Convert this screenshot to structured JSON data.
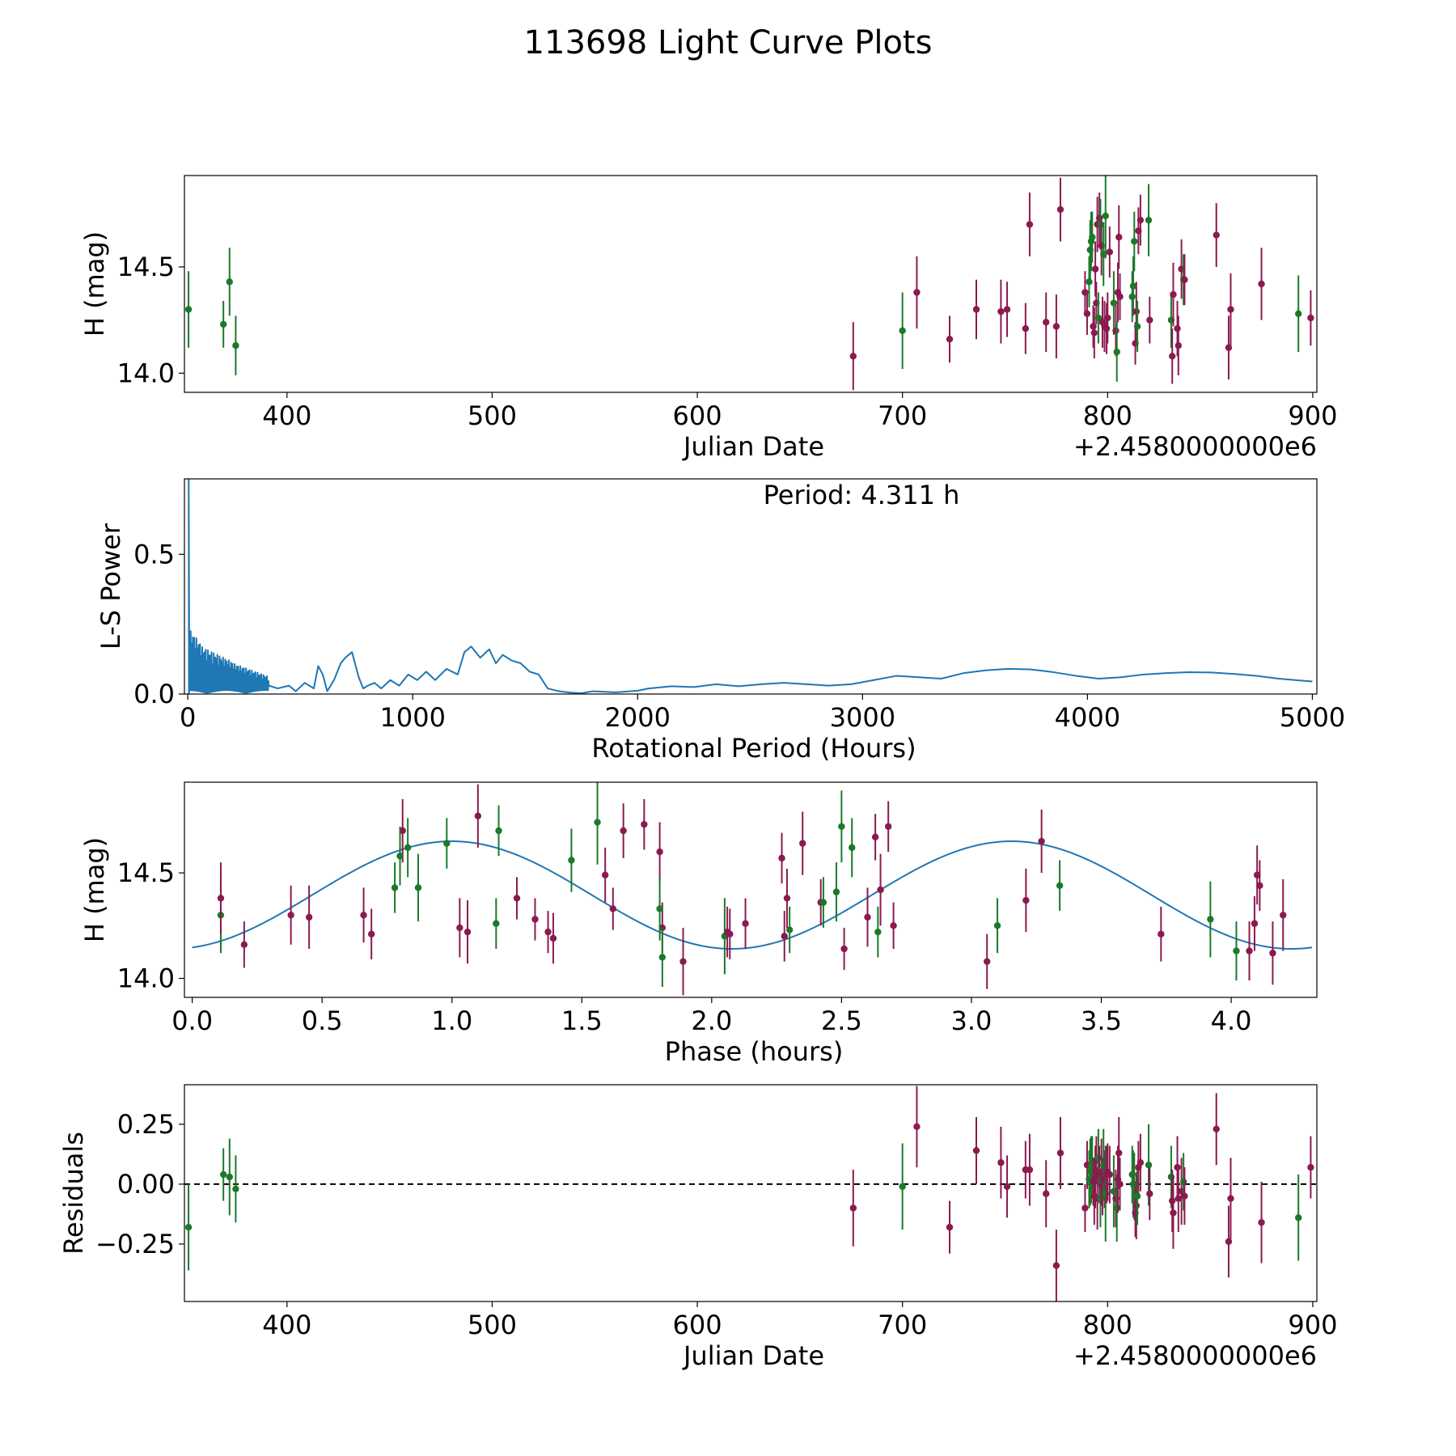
{
  "chart_data": {
    "title": "113698 Light Curve Plots",
    "colors": {
      "green": "#1a7a2a",
      "maroon": "#8b1a4f",
      "curve": "#1f77b4",
      "reference": "#000000"
    },
    "panels": [
      {
        "name": "light-curve",
        "type": "scatter",
        "xlabel": "Julian Date",
        "ylabel": "H (mag)",
        "offset_text": "+2.4580000000e6",
        "xlim": [
          350,
          902
        ],
        "ylim": [
          13.91,
          14.93
        ],
        "xticks": [
          400,
          500,
          600,
          700,
          800,
          900
        ],
        "xtick_labels": [
          "400",
          "500",
          "600",
          "700",
          "800",
          "900"
        ],
        "yticks": [
          14.0,
          14.5
        ],
        "ytick_labels": [
          "14.0",
          "14.5"
        ]
      },
      {
        "name": "periodogram",
        "type": "line",
        "xlabel": "Rotational Period (Hours)",
        "ylabel": "L-S Power",
        "annotation": "Period: 4.311 h",
        "xlim": [
          -15,
          5020
        ],
        "ylim": [
          0,
          0.77
        ],
        "xticks": [
          0,
          1000,
          2000,
          3000,
          4000,
          5000
        ],
        "xtick_labels": [
          "0",
          "1000",
          "2000",
          "3000",
          "4000",
          "5000"
        ],
        "yticks": [
          0.0,
          0.5
        ],
        "ytick_labels": [
          "0.0",
          "0.5"
        ],
        "noise_region": [
          5,
          360
        ],
        "x": [
          360,
          400,
          450,
          480,
          520,
          560,
          580,
          600,
          620,
          650,
          680,
          700,
          730,
          760,
          780,
          800,
          830,
          860,
          900,
          940,
          980,
          1020,
          1060,
          1100,
          1150,
          1200,
          1230,
          1260,
          1300,
          1340,
          1370,
          1400,
          1440,
          1480,
          1520,
          1560,
          1600,
          1650,
          1700,
          1750,
          1800,
          1900,
          2000,
          2050,
          2150,
          2250,
          2350,
          2450,
          2550,
          2650,
          2750,
          2850,
          2950,
          3050,
          3150,
          3250,
          3350,
          3450,
          3550,
          3650,
          3750,
          3850,
          3950,
          4050,
          4150,
          4250,
          4350,
          4450,
          4550,
          4650,
          4750,
          4850,
          4950,
          5000
        ],
        "y": [
          0.03,
          0.02,
          0.03,
          0.01,
          0.04,
          0.02,
          0.1,
          0.07,
          0.01,
          0.05,
          0.11,
          0.13,
          0.15,
          0.06,
          0.02,
          0.03,
          0.04,
          0.02,
          0.05,
          0.03,
          0.07,
          0.05,
          0.08,
          0.05,
          0.09,
          0.07,
          0.15,
          0.17,
          0.13,
          0.16,
          0.11,
          0.14,
          0.12,
          0.11,
          0.08,
          0.07,
          0.02,
          0.01,
          0.005,
          0.003,
          0.01,
          0.006,
          0.012,
          0.02,
          0.028,
          0.025,
          0.035,
          0.028,
          0.035,
          0.04,
          0.035,
          0.03,
          0.035,
          0.05,
          0.065,
          0.06,
          0.055,
          0.075,
          0.085,
          0.09,
          0.088,
          0.078,
          0.065,
          0.055,
          0.06,
          0.07,
          0.075,
          0.078,
          0.077,
          0.072,
          0.065,
          0.055,
          0.048,
          0.045
        ]
      },
      {
        "name": "phase-folded",
        "type": "scatter",
        "xlabel": "Phase (hours)",
        "ylabel": "H (mag)",
        "xlim": [
          -0.03,
          4.33
        ],
        "ylim": [
          13.91,
          14.93
        ],
        "xticks": [
          0.0,
          0.5,
          1.0,
          1.5,
          2.0,
          2.5,
          3.0,
          3.5,
          4.0
        ],
        "xtick_labels": [
          "0.0",
          "0.5",
          "1.0",
          "1.5",
          "2.0",
          "2.5",
          "3.0",
          "3.5",
          "4.0"
        ],
        "yticks": [
          14.0,
          14.5
        ],
        "ytick_labels": [
          "14.0",
          "14.5"
        ],
        "model": {
          "mean": 14.395,
          "amplitude": 0.255,
          "period": 2.155,
          "phase_of_max": 1.0,
          "x_range": [
            0.0,
            4.311
          ]
        }
      },
      {
        "name": "residuals",
        "type": "scatter",
        "xlabel": "Julian Date",
        "ylabel": "Residuals",
        "offset_text": "+2.4580000000e6",
        "reference_line": 0.0,
        "xlim": [
          350,
          902
        ],
        "ylim": [
          -0.49,
          0.415
        ],
        "xticks": [
          400,
          500,
          600,
          700,
          800,
          900
        ],
        "xtick_labels": [
          "400",
          "500",
          "600",
          "700",
          "800",
          "900"
        ],
        "yticks": [
          0.25,
          0.0,
          -0.25
        ],
        "ytick_labels": [
          "0.25",
          "0.00",
          "−0.25"
        ]
      }
    ],
    "observations": [
      {
        "jd": 352,
        "h": 14.3,
        "err": 0.18,
        "band": "green",
        "phase": 0.11,
        "resid": -0.18
      },
      {
        "jd": 369,
        "h": 14.23,
        "err": 0.11,
        "band": "green",
        "phase": 2.3,
        "resid": 0.04
      },
      {
        "jd": 372,
        "h": 14.43,
        "err": 0.16,
        "band": "green",
        "phase": 0.87,
        "resid": 0.03
      },
      {
        "jd": 375,
        "h": 14.13,
        "err": 0.14,
        "band": "green",
        "phase": 4.02,
        "resid": -0.02
      },
      {
        "jd": 676,
        "h": 14.08,
        "err": 0.16,
        "band": "maroon",
        "phase": 1.89,
        "resid": -0.1
      },
      {
        "jd": 700,
        "h": 14.2,
        "err": 0.18,
        "band": "green",
        "phase": 2.05,
        "resid": -0.01
      },
      {
        "jd": 707,
        "h": 14.38,
        "err": 0.17,
        "band": "maroon",
        "phase": 0.11,
        "resid": 0.24
      },
      {
        "jd": 723,
        "h": 14.16,
        "err": 0.11,
        "band": "maroon",
        "phase": 0.2,
        "resid": -0.18
      },
      {
        "jd": 736,
        "h": 14.3,
        "err": 0.14,
        "band": "maroon",
        "phase": 0.38,
        "resid": 0.14
      },
      {
        "jd": 748,
        "h": 14.29,
        "err": 0.15,
        "band": "maroon",
        "phase": 0.45,
        "resid": 0.09
      },
      {
        "jd": 751,
        "h": 14.3,
        "err": 0.13,
        "band": "maroon",
        "phase": 0.66,
        "resid": -0.01
      },
      {
        "jd": 760,
        "h": 14.21,
        "err": 0.12,
        "band": "maroon",
        "phase": 0.69,
        "resid": 0.06
      },
      {
        "jd": 762,
        "h": 14.7,
        "err": 0.15,
        "band": "maroon",
        "phase": 0.81,
        "resid": 0.06
      },
      {
        "jd": 770,
        "h": 14.24,
        "err": 0.14,
        "band": "maroon",
        "phase": 1.03,
        "resid": -0.04
      },
      {
        "jd": 775,
        "h": 14.22,
        "err": 0.15,
        "band": "maroon",
        "phase": 1.06,
        "resid": -0.34
      },
      {
        "jd": 777,
        "h": 14.77,
        "err": 0.15,
        "band": "maroon",
        "phase": 1.1,
        "resid": 0.13
      },
      {
        "jd": 789,
        "h": 14.38,
        "err": 0.1,
        "band": "maroon",
        "phase": 1.25,
        "resid": -0.1
      },
      {
        "jd": 790,
        "h": 14.28,
        "err": 0.1,
        "band": "maroon",
        "phase": 1.32,
        "resid": 0.08
      },
      {
        "jd": 791,
        "h": 14.43,
        "err": 0.12,
        "band": "green",
        "phase": 0.78,
        "resid": 0.02
      },
      {
        "jd": 791.5,
        "h": 14.58,
        "err": 0.14,
        "band": "green",
        "phase": 0.8,
        "resid": 0.05
      },
      {
        "jd": 792,
        "h": 14.62,
        "err": 0.14,
        "band": "green",
        "phase": 0.83,
        "resid": 0.06
      },
      {
        "jd": 792.5,
        "h": 14.64,
        "err": 0.12,
        "band": "green",
        "phase": 0.98,
        "resid": 0.08
      },
      {
        "jd": 793,
        "h": 14.22,
        "err": 0.1,
        "band": "maroon",
        "phase": 1.37,
        "resid": 0.01
      },
      {
        "jd": 793.5,
        "h": 14.19,
        "err": 0.12,
        "band": "maroon",
        "phase": 1.39,
        "resid": -0.05
      },
      {
        "jd": 794,
        "h": 14.49,
        "err": 0.13,
        "band": "maroon",
        "phase": 1.59,
        "resid": 0.03
      },
      {
        "jd": 794.5,
        "h": 14.33,
        "err": 0.1,
        "band": "maroon",
        "phase": 1.62,
        "resid": 0.1
      },
      {
        "jd": 795,
        "h": 14.7,
        "err": 0.13,
        "band": "maroon",
        "phase": 1.66,
        "resid": -0.06
      },
      {
        "jd": 795.5,
        "h": 14.26,
        "err": 0.12,
        "band": "green",
        "phase": 1.17,
        "resid": 0.11
      },
      {
        "jd": 796,
        "h": 14.73,
        "err": 0.12,
        "band": "maroon",
        "phase": 1.74,
        "resid": 0.04
      },
      {
        "jd": 796.5,
        "h": 14.7,
        "err": 0.12,
        "band": "green",
        "phase": 1.18,
        "resid": -0.06
      },
      {
        "jd": 797,
        "h": 14.6,
        "err": 0.14,
        "band": "maroon",
        "phase": 1.8,
        "resid": 0.05
      },
      {
        "jd": 797.5,
        "h": 14.24,
        "err": 0.12,
        "band": "maroon",
        "phase": 1.81,
        "resid": -0.01
      },
      {
        "jd": 798,
        "h": 14.56,
        "err": 0.15,
        "band": "green",
        "phase": 1.46,
        "resid": 0.08
      },
      {
        "jd": 798.5,
        "h": 14.22,
        "err": 0.12,
        "band": "maroon",
        "phase": 2.06,
        "resid": 0.02
      },
      {
        "jd": 799,
        "h": 14.74,
        "err": 0.2,
        "band": "green",
        "phase": 1.56,
        "resid": -0.04
      },
      {
        "jd": 799.5,
        "h": 14.21,
        "err": 0.12,
        "band": "maroon",
        "phase": 2.07,
        "resid": 0.04
      },
      {
        "jd": 800,
        "h": 14.26,
        "err": 0.12,
        "band": "maroon",
        "phase": 2.13,
        "resid": 0.05
      },
      {
        "jd": 801,
        "h": 14.57,
        "err": 0.12,
        "band": "maroon",
        "phase": 2.27,
        "resid": 0.04
      },
      {
        "jd": 803,
        "h": 14.33,
        "err": 0.15,
        "band": "green",
        "phase": 1.8,
        "resid": -0.03
      },
      {
        "jd": 804,
        "h": 14.2,
        "err": 0.12,
        "band": "maroon",
        "phase": 2.28,
        "resid": -0.06
      },
      {
        "jd": 804.5,
        "h": 14.1,
        "err": 0.14,
        "band": "green",
        "phase": 1.81,
        "resid": -0.1
      },
      {
        "jd": 805,
        "h": 14.38,
        "err": 0.14,
        "band": "maroon",
        "phase": 2.29,
        "resid": 0.02
      },
      {
        "jd": 805.5,
        "h": 14.64,
        "err": 0.15,
        "band": "maroon",
        "phase": 2.35,
        "resid": 0.13
      },
      {
        "jd": 806,
        "h": 14.36,
        "err": 0.11,
        "band": "maroon",
        "phase": 2.42,
        "resid": 0.0
      },
      {
        "jd": 812,
        "h": 14.36,
        "err": 0.12,
        "band": "green",
        "phase": 2.43,
        "resid": 0.04
      },
      {
        "jd": 812.5,
        "h": 14.41,
        "err": 0.14,
        "band": "green",
        "phase": 2.48,
        "resid": 0.0
      },
      {
        "jd": 813,
        "h": 14.62,
        "err": 0.14,
        "band": "green",
        "phase": 2.54,
        "resid": -0.01
      },
      {
        "jd": 813.5,
        "h": 14.14,
        "err": 0.1,
        "band": "maroon",
        "phase": 2.51,
        "resid": -0.12
      },
      {
        "jd": 814,
        "h": 14.29,
        "err": 0.14,
        "band": "maroon",
        "phase": 2.6,
        "resid": -0.09
      },
      {
        "jd": 814.5,
        "h": 14.22,
        "err": 0.12,
        "band": "green",
        "phase": 2.64,
        "resid": -0.05
      },
      {
        "jd": 815,
        "h": 14.67,
        "err": 0.11,
        "band": "maroon",
        "phase": 2.63,
        "resid": 0.07
      },
      {
        "jd": 816,
        "h": 14.72,
        "err": 0.12,
        "band": "maroon",
        "phase": 2.68,
        "resid": 0.09
      },
      {
        "jd": 820,
        "h": 14.72,
        "err": 0.17,
        "band": "green",
        "phase": 2.5,
        "resid": 0.08
      },
      {
        "jd": 820.5,
        "h": 14.25,
        "err": 0.11,
        "band": "maroon",
        "phase": 2.7,
        "resid": -0.04
      },
      {
        "jd": 831,
        "h": 14.25,
        "err": 0.13,
        "band": "green",
        "phase": 3.1,
        "resid": 0.03
      },
      {
        "jd": 831.5,
        "h": 14.08,
        "err": 0.13,
        "band": "maroon",
        "phase": 3.06,
        "resid": -0.07
      },
      {
        "jd": 832,
        "h": 14.37,
        "err": 0.15,
        "band": "maroon",
        "phase": 3.21,
        "resid": -0.12
      },
      {
        "jd": 834,
        "h": 14.21,
        "err": 0.13,
        "band": "maroon",
        "phase": 3.73,
        "resid": 0.07
      },
      {
        "jd": 834.5,
        "h": 14.13,
        "err": 0.14,
        "band": "maroon",
        "phase": 4.07,
        "resid": -0.06
      },
      {
        "jd": 836,
        "h": 14.49,
        "err": 0.14,
        "band": "maroon",
        "phase": 4.1,
        "resid": -0.03
      },
      {
        "jd": 837,
        "h": 14.44,
        "err": 0.12,
        "band": "green",
        "phase": 3.34,
        "resid": 0.01
      },
      {
        "jd": 837.5,
        "h": 14.44,
        "err": 0.12,
        "band": "maroon",
        "phase": 4.11,
        "resid": -0.05
      },
      {
        "jd": 853,
        "h": 14.65,
        "err": 0.15,
        "band": "maroon",
        "phase": 3.27,
        "resid": 0.23
      },
      {
        "jd": 859,
        "h": 14.12,
        "err": 0.15,
        "band": "maroon",
        "phase": 4.16,
        "resid": -0.24
      },
      {
        "jd": 860,
        "h": 14.3,
        "err": 0.17,
        "band": "maroon",
        "phase": 4.2,
        "resid": -0.06
      },
      {
        "jd": 875,
        "h": 14.42,
        "err": 0.17,
        "band": "maroon",
        "phase": 2.65,
        "resid": -0.16
      },
      {
        "jd": 893,
        "h": 14.28,
        "err": 0.18,
        "band": "green",
        "phase": 3.92,
        "resid": -0.14
      },
      {
        "jd": 899,
        "h": 14.26,
        "err": 0.13,
        "band": "maroon",
        "phase": 4.09,
        "resid": 0.07
      }
    ]
  }
}
